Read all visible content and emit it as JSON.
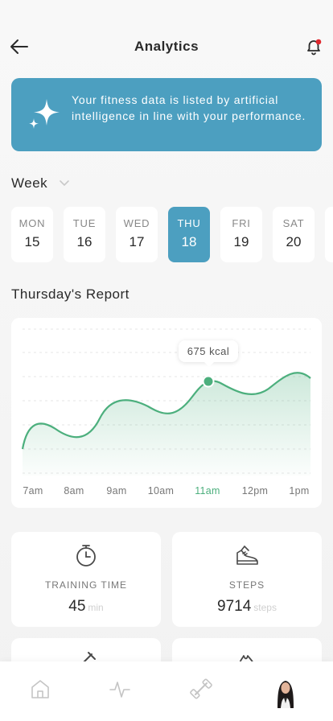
{
  "header": {
    "title": "Analytics"
  },
  "banner": {
    "text": "Your fitness data is listed by artificial intelligence in line with your performance."
  },
  "week": {
    "label": "Week"
  },
  "days": [
    {
      "name": "MON",
      "date": "15",
      "active": false
    },
    {
      "name": "TUE",
      "date": "16",
      "active": false
    },
    {
      "name": "WED",
      "date": "17",
      "active": false
    },
    {
      "name": "THU",
      "date": "18",
      "active": true
    },
    {
      "name": "FRI",
      "date": "19",
      "active": false
    },
    {
      "name": "SAT",
      "date": "20",
      "active": false
    }
  ],
  "report": {
    "title": "Thursday's Report"
  },
  "chart_data": {
    "type": "area",
    "x": [
      "7am",
      "8am",
      "9am",
      "10am",
      "11am",
      "12pm",
      "1pm"
    ],
    "highlight": {
      "x": "11am",
      "label": "675 kcal"
    },
    "active_tick": "11am",
    "grid": true
  },
  "stats": [
    {
      "label": "TRAINING TIME",
      "value": "45",
      "unit": "min",
      "icon": "stopwatch-icon"
    },
    {
      "label": "STEPS",
      "value": "9714",
      "unit": "steps",
      "icon": "shoe-icon"
    }
  ],
  "colors": {
    "accent": "#4c9fc0",
    "chart_line": "#4caf7d",
    "notification_dot": "#e0282e"
  }
}
